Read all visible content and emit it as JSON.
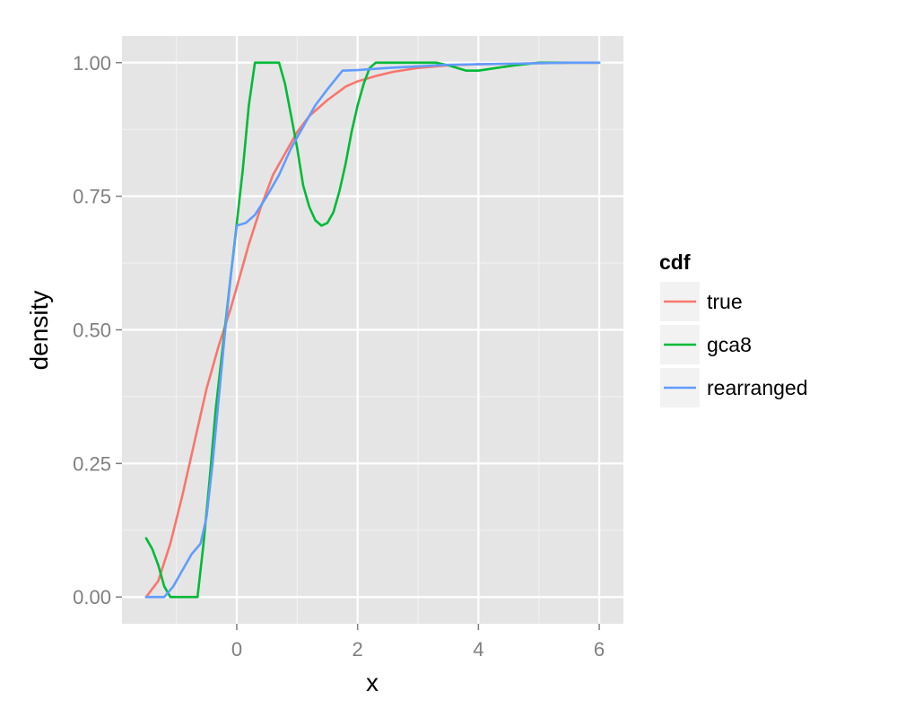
{
  "chart_data": {
    "type": "line",
    "title": "",
    "xlabel": "x",
    "ylabel": "density",
    "xlim": [
      -1.9,
      6.4
    ],
    "ylim": [
      -0.05,
      1.05
    ],
    "xticks": [
      0,
      2,
      4,
      6
    ],
    "xtick_labels": [
      "0",
      "2",
      "4",
      "6"
    ],
    "yticks": [
      0,
      0.25,
      0.5,
      0.75,
      1
    ],
    "ytick_labels": [
      "0.00",
      "0.25",
      "0.50",
      "0.75",
      "1.00"
    ],
    "grid": true,
    "legend": {
      "title": "cdf",
      "position": "right"
    },
    "series": [
      {
        "name": "true",
        "color": "#F8766D",
        "x": [
          -1.5,
          -1.3,
          -1.1,
          -0.9,
          -0.7,
          -0.5,
          -0.3,
          -0.1,
          0,
          0.2,
          0.4,
          0.6,
          0.8,
          1.0,
          1.2,
          1.5,
          1.8,
          2.0,
          2.3,
          2.6,
          3.0,
          3.5,
          4.0,
          4.5,
          5.0,
          5.5,
          6.0
        ],
        "y": [
          0,
          0.03,
          0.1,
          0.19,
          0.29,
          0.39,
          0.47,
          0.54,
          0.58,
          0.66,
          0.73,
          0.79,
          0.83,
          0.87,
          0.9,
          0.93,
          0.955,
          0.965,
          0.975,
          0.983,
          0.99,
          0.995,
          0.997,
          0.998,
          0.999,
          1.0,
          1.0
        ]
      },
      {
        "name": "gca8",
        "color": "#00BA38",
        "x": [
          -1.5,
          -1.4,
          -1.3,
          -1.2,
          -1.1,
          -1.0,
          -0.8,
          -0.65,
          -0.55,
          -0.45,
          -0.35,
          -0.2,
          -0.1,
          0,
          0.1,
          0.2,
          0.3,
          0.5,
          0.7,
          0.8,
          0.9,
          1.0,
          1.1,
          1.2,
          1.3,
          1.4,
          1.5,
          1.6,
          1.7,
          1.8,
          1.9,
          2.0,
          2.1,
          2.2,
          2.3,
          2.6,
          3.0,
          3.3,
          3.5,
          3.8,
          4.0,
          4.3,
          4.6,
          5.0,
          5.5,
          6.0
        ],
        "y": [
          0.11,
          0.09,
          0.06,
          0.02,
          0,
          0,
          0,
          0,
          0.1,
          0.22,
          0.35,
          0.5,
          0.6,
          0.7,
          0.8,
          0.92,
          1.0,
          1.0,
          1.0,
          0.96,
          0.9,
          0.84,
          0.77,
          0.73,
          0.705,
          0.695,
          0.7,
          0.72,
          0.76,
          0.81,
          0.87,
          0.92,
          0.96,
          0.99,
          1.0,
          1.0,
          1.0,
          1.0,
          0.995,
          0.985,
          0.985,
          0.99,
          0.995,
          1.0,
          1.0,
          1.0
        ]
      },
      {
        "name": "rearranged",
        "color": "#619CFF",
        "x": [
          -1.5,
          -1.2,
          -1.05,
          -0.9,
          -0.75,
          -0.6,
          -0.5,
          -0.4,
          -0.3,
          -0.2,
          -0.1,
          0,
          0.15,
          0.3,
          0.5,
          0.7,
          0.9,
          1.1,
          1.3,
          1.5,
          1.75,
          2.0,
          2.5,
          3.0,
          3.5,
          4.0,
          4.5,
          5.0,
          5.5,
          6.0
        ],
        "y": [
          0,
          0,
          0.02,
          0.05,
          0.08,
          0.1,
          0.15,
          0.25,
          0.37,
          0.49,
          0.6,
          0.695,
          0.7,
          0.715,
          0.75,
          0.79,
          0.84,
          0.88,
          0.92,
          0.95,
          0.985,
          0.986,
          0.99,
          0.993,
          0.996,
          0.997,
          0.998,
          0.999,
          1.0,
          1.0
        ]
      }
    ]
  }
}
